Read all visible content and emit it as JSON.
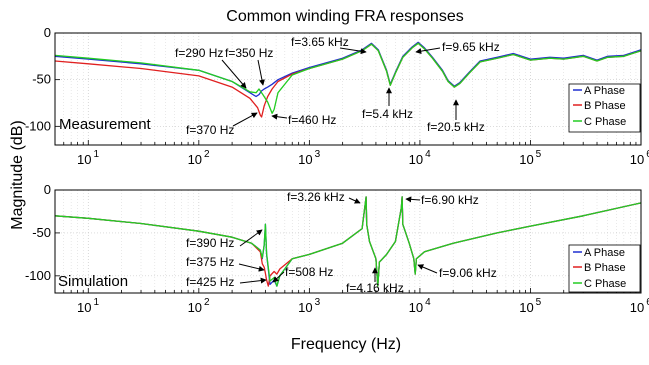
{
  "figure": {
    "title": "Common winding FRA responses",
    "xlabel": "Frequency (Hz)",
    "ylabel": "Magnitude (dB)"
  },
  "colors": {
    "A Phase": "#1f2fd1",
    "B Phase": "#e02020",
    "C Phase": "#22cc22"
  },
  "chart_data": [
    {
      "type": "line",
      "panel_label": "Measurement",
      "xscale": "log",
      "xlim": [
        5,
        1000000
      ],
      "ylim": [
        -120,
        0
      ],
      "xticks": [
        10,
        100,
        1000,
        10000,
        100000,
        1000000
      ],
      "xtick_labels": [
        {
          "base": "10",
          "exp": "1"
        },
        {
          "base": "10",
          "exp": "2"
        },
        {
          "base": "10",
          "exp": "3"
        },
        {
          "base": "10",
          "exp": "4"
        },
        {
          "base": "10",
          "exp": "5"
        },
        {
          "base": "10",
          "exp": "6"
        }
      ],
      "yticks": [
        0,
        -50,
        -100
      ],
      "ytick_labels": [
        "0",
        "-50",
        "-100"
      ],
      "grid": true,
      "legend_position": "bottom-right",
      "series": [
        {
          "name": "A Phase",
          "x": [
            5,
            10,
            30,
            100,
            200,
            290,
            330,
            350,
            370,
            390,
            420,
            460,
            520,
            700,
            1000,
            2000,
            3000,
            3650,
            4200,
            5000,
            5400,
            6000,
            7000,
            8500,
            9650,
            11000,
            13000,
            16000,
            18000,
            20500,
            23000,
            28000,
            35000,
            50000,
            70000,
            100000,
            150000,
            200000,
            300000,
            400000,
            500000,
            700000,
            1000000
          ],
          "y": [
            -25,
            -28,
            -33,
            -40,
            -52,
            -64,
            -68,
            -66,
            -62,
            -60,
            -58,
            -55,
            -50,
            -43,
            -37,
            -27,
            -18,
            -11,
            -18,
            -40,
            -55,
            -42,
            -25,
            -15,
            -10,
            -16,
            -26,
            -40,
            -51,
            -57,
            -53,
            -42,
            -30,
            -26,
            -22,
            -28,
            -26,
            -27,
            -24,
            -29,
            -25,
            -24,
            -18
          ]
        },
        {
          "name": "B Phase",
          "x": [
            5,
            10,
            30,
            100,
            200,
            290,
            340,
            360,
            370,
            390,
            420,
            460,
            520,
            700,
            1000,
            2000,
            3000,
            3650,
            4200,
            5000,
            5400,
            6000,
            7000,
            8500,
            9650,
            11000,
            13000,
            16000,
            18000,
            20500,
            23000,
            28000,
            35000,
            50000,
            70000,
            100000,
            150000,
            200000,
            300000,
            400000,
            500000,
            700000,
            1000000
          ],
          "y": [
            -30,
            -33,
            -38,
            -46,
            -58,
            -70,
            -80,
            -88,
            -90,
            -78,
            -68,
            -60,
            -52,
            -44,
            -38,
            -28,
            -19,
            -12,
            -19,
            -41,
            -56,
            -43,
            -26,
            -16,
            -11,
            -17,
            -27,
            -41,
            -52,
            -58,
            -54,
            -43,
            -31,
            -27,
            -23,
            -29,
            -27,
            -28,
            -25,
            -30,
            -26,
            -25,
            -19
          ]
        },
        {
          "name": "C Phase",
          "x": [
            5,
            10,
            30,
            100,
            200,
            290,
            330,
            350,
            380,
            420,
            460,
            480,
            520,
            700,
            1000,
            2000,
            3000,
            3650,
            4200,
            5000,
            5400,
            6000,
            7000,
            8500,
            9650,
            11000,
            13000,
            16000,
            18000,
            20500,
            23000,
            28000,
            35000,
            50000,
            70000,
            100000,
            150000,
            200000,
            300000,
            400000,
            500000,
            700000,
            1000000
          ],
          "y": [
            -24,
            -27,
            -32,
            -40,
            -52,
            -63,
            -64,
            -60,
            -66,
            -74,
            -86,
            -82,
            -64,
            -45,
            -38,
            -28,
            -19,
            -12,
            -19,
            -41,
            -56,
            -43,
            -26,
            -16,
            -11,
            -17,
            -27,
            -41,
            -52,
            -58,
            -54,
            -43,
            -31,
            -27,
            -23,
            -29,
            -27,
            -28,
            -25,
            -30,
            -26,
            -25,
            -19
          ]
        }
      ],
      "annotations": [
        {
          "text": "f=290 Hz",
          "x": 290
        },
        {
          "text": "f=350 Hz",
          "x": 350
        },
        {
          "text": "f=370 Hz",
          "x": 370
        },
        {
          "text": "f=460 Hz",
          "x": 460
        },
        {
          "text": "f=3.65 kHz",
          "x": 3650
        },
        {
          "text": "f=5.4 kHz",
          "x": 5400
        },
        {
          "text": "f=9.65 kHz",
          "x": 9650
        },
        {
          "text": "f=20.5 kHz",
          "x": 20500
        }
      ]
    },
    {
      "type": "line",
      "panel_label": "Simulation",
      "xscale": "log",
      "xlim": [
        5,
        1000000
      ],
      "ylim": [
        -120,
        0
      ],
      "xticks": [
        10,
        100,
        1000,
        10000,
        100000,
        1000000
      ],
      "xtick_labels": [
        {
          "base": "10",
          "exp": "1"
        },
        {
          "base": "10",
          "exp": "2"
        },
        {
          "base": "10",
          "exp": "3"
        },
        {
          "base": "10",
          "exp": "4"
        },
        {
          "base": "10",
          "exp": "5"
        },
        {
          "base": "10",
          "exp": "6"
        }
      ],
      "yticks": [
        0,
        -50,
        -100
      ],
      "ytick_labels": [
        "0",
        "-50",
        "-100"
      ],
      "grid": true,
      "legend_position": "bottom-right",
      "series": [
        {
          "name": "A Phase",
          "x": [
            5,
            10,
            30,
            100,
            200,
            300,
            360,
            375,
            390,
            400,
            410,
            425,
            440,
            480,
            508,
            540,
            700,
            1000,
            2000,
            3000,
            3260,
            3300,
            3500,
            4000,
            4160,
            4300,
            5000,
            6000,
            6800,
            6900,
            7000,
            8000,
            8800,
            9060,
            9300,
            11000,
            20000,
            50000,
            100000,
            300000,
            1000000
          ],
          "y": [
            -30,
            -33,
            -39,
            -48,
            -55,
            -62,
            -70,
            -80,
            -64,
            -40,
            -75,
            -92,
            -110,
            -105,
            -112,
            -100,
            -80,
            -75,
            -62,
            -45,
            -8,
            -40,
            -60,
            -80,
            -112,
            -84,
            -75,
            -60,
            -20,
            -8,
            -40,
            -62,
            -80,
            -98,
            -80,
            -72,
            -62,
            -50,
            -42,
            -30,
            -15
          ]
        },
        {
          "name": "B Phase",
          "x": [
            5,
            10,
            30,
            100,
            200,
            300,
            360,
            375,
            390,
            400,
            410,
            425,
            440,
            480,
            508,
            540,
            700,
            1000,
            2000,
            3000,
            3260,
            3300,
            3500,
            4000,
            4160,
            4300,
            5000,
            6000,
            6800,
            6900,
            7000,
            8000,
            8800,
            9060,
            9300,
            11000,
            20000,
            50000,
            100000,
            300000,
            1000000
          ],
          "y": [
            -30,
            -33,
            -39,
            -48,
            -55,
            -62,
            -72,
            -86,
            -90,
            -97,
            -105,
            -112,
            -100,
            -95,
            -98,
            -92,
            -80,
            -75,
            -62,
            -45,
            -8,
            -40,
            -60,
            -80,
            -112,
            -84,
            -75,
            -60,
            -20,
            -8,
            -40,
            -62,
            -80,
            -98,
            -80,
            -72,
            -62,
            -50,
            -42,
            -30,
            -15
          ]
        },
        {
          "name": "C Phase",
          "x": [
            5,
            10,
            30,
            100,
            200,
            300,
            360,
            375,
            390,
            400,
            410,
            425,
            440,
            480,
            508,
            540,
            700,
            1000,
            2000,
            3000,
            3260,
            3300,
            3500,
            4000,
            4160,
            4300,
            5000,
            6000,
            6800,
            6900,
            7000,
            8000,
            8800,
            9060,
            9300,
            11000,
            20000,
            50000,
            100000,
            300000,
            1000000
          ],
          "y": [
            -30,
            -33,
            -39,
            -48,
            -55,
            -62,
            -70,
            -79,
            -64,
            -40,
            -74,
            -90,
            -106,
            -102,
            -112,
            -100,
            -80,
            -75,
            -62,
            -45,
            -8,
            -40,
            -60,
            -80,
            -112,
            -84,
            -75,
            -60,
            -20,
            -8,
            -40,
            -62,
            -80,
            -98,
            -80,
            -72,
            -62,
            -50,
            -42,
            -30,
            -15
          ]
        }
      ],
      "annotations": [
        {
          "text": "f=390 Hz",
          "x": 390
        },
        {
          "text": "f=375 Hz",
          "x": 375
        },
        {
          "text": "f=425 Hz",
          "x": 425
        },
        {
          "text": "f=508 Hz",
          "x": 508
        },
        {
          "text": "f=3.26 kHz",
          "x": 3260
        },
        {
          "text": "f=4.16 kHz",
          "x": 4160
        },
        {
          "text": "f=6.90 kHz",
          "x": 6900
        },
        {
          "text": "f=9.06 kHz",
          "x": 9060
        }
      ]
    }
  ]
}
